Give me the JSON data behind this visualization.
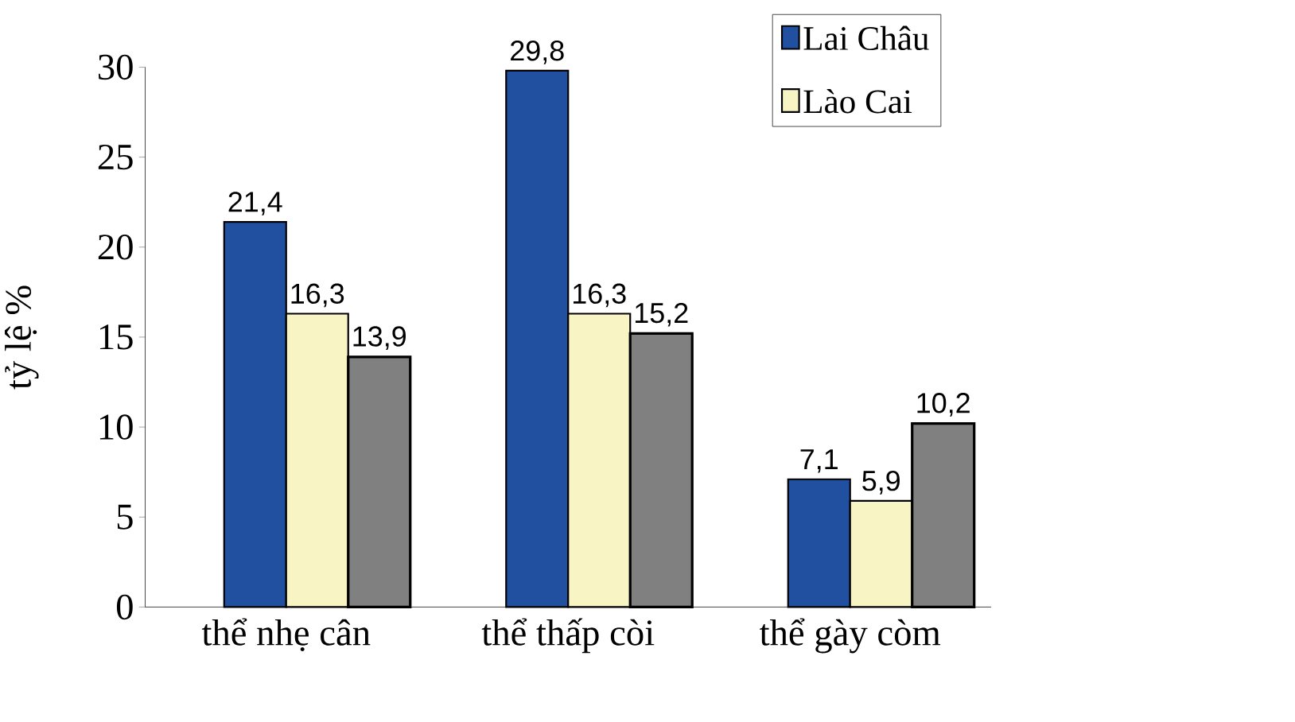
{
  "chart_data": {
    "type": "bar",
    "ylabel": "tỷ lệ %",
    "categories": [
      "thể nhẹ cân",
      "thể thấp còi",
      "thể gày còm"
    ],
    "series": [
      {
        "name": "Lai Châu",
        "color": "#2150a0",
        "values": [
          21.4,
          29.8,
          7.1
        ],
        "value_labels": [
          "21,4",
          "29,8",
          "7,1"
        ]
      },
      {
        "name": "Lào Cai",
        "color": "#f8f4c4",
        "values": [
          16.3,
          16.3,
          5.9
        ],
        "value_labels": [
          "16,3",
          "16,3",
          "5,9"
        ]
      },
      {
        "color": "#808080",
        "values": [
          13.9,
          15.2,
          10.2
        ],
        "value_labels": [
          "13,9",
          "15,2",
          "10,2"
        ]
      }
    ],
    "ylim": [
      0,
      30
    ],
    "yticks": [
      0,
      5,
      10,
      15,
      20,
      25,
      30
    ],
    "grid": false,
    "legend": "top right"
  }
}
